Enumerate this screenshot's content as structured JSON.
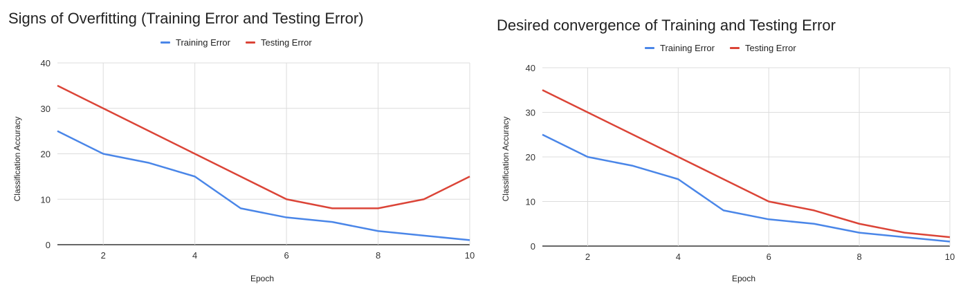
{
  "chart_data": [
    {
      "type": "line",
      "title": "Signs of Overfitting (Training Error and Testing Error)",
      "xlabel": "Epoch",
      "ylabel": "Classification Accuracy",
      "x": [
        1,
        2,
        3,
        4,
        5,
        6,
        7,
        8,
        9,
        10
      ],
      "xticks": [
        "2",
        "4",
        "6",
        "8",
        "10"
      ],
      "yticks": [
        "0",
        "10",
        "20",
        "30",
        "40"
      ],
      "xlim": [
        1,
        10
      ],
      "ylim": [
        0,
        40
      ],
      "grid": true,
      "legend": "top",
      "series": [
        {
          "name": "Training Error",
          "color": "#4a86e8",
          "values": [
            25,
            20,
            18,
            15,
            8,
            6,
            5,
            3,
            2,
            1
          ]
        },
        {
          "name": "Testing Error",
          "color": "#db4437",
          "values": [
            35,
            30,
            25,
            20,
            15,
            10,
            8,
            8,
            10,
            15
          ]
        }
      ]
    },
    {
      "type": "line",
      "title": "Desired convergence of Training and Testing Error",
      "xlabel": "Epoch",
      "ylabel": "Classification Accuracy",
      "x": [
        1,
        2,
        3,
        4,
        5,
        6,
        7,
        8,
        9,
        10
      ],
      "xticks": [
        "2",
        "4",
        "6",
        "8",
        "10"
      ],
      "yticks": [
        "0",
        "10",
        "20",
        "30",
        "40"
      ],
      "xlim": [
        1,
        10
      ],
      "ylim": [
        0,
        40
      ],
      "grid": true,
      "legend": "top",
      "series": [
        {
          "name": "Training Error",
          "color": "#4a86e8",
          "values": [
            25,
            20,
            18,
            15,
            8,
            6,
            5,
            3,
            2,
            1
          ]
        },
        {
          "name": "Testing Error",
          "color": "#db4437",
          "values": [
            35,
            30,
            25,
            20,
            15,
            10,
            8,
            5,
            3,
            2
          ]
        }
      ]
    }
  ]
}
